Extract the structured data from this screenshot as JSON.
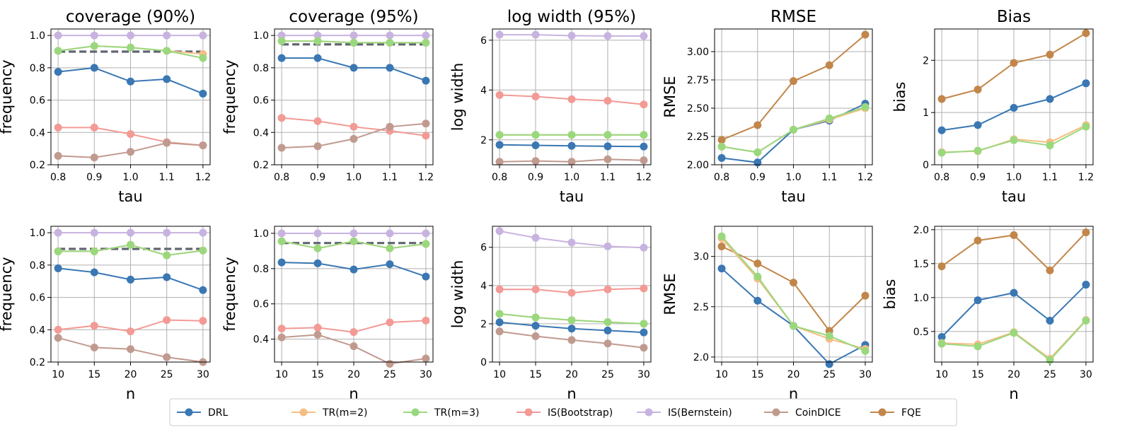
{
  "colors": {
    "DRL": "#3a77b3",
    "TR(m=2)": "#f6be84",
    "TR(m=3)": "#9ad87e",
    "IS(Bootstrap)": "#f39a95",
    "IS(Bernstein)": "#c8b3e0",
    "CoinDICE": "#c19a8f",
    "FQE": "#c2864a",
    "target": "#5f6670",
    "grid": "#b0b0b0"
  },
  "legend": [
    "DRL",
    "TR(m=2)",
    "TR(m=3)",
    "IS(Bootstrap)",
    "IS(Bernstein)",
    "CoinDICE",
    "FQE"
  ],
  "chart_data": [
    {
      "type": "line",
      "title": "coverage  (90%)",
      "xlabel": "tau",
      "ylabel": "frequency",
      "categories": [
        "0.8",
        "0.9",
        "1.0",
        "1.1",
        "1.2"
      ],
      "ylim": [
        0.2,
        1.04
      ],
      "yticks": [
        "0.2",
        "0.4",
        "0.6",
        "0.8",
        "1.0"
      ],
      "target_line": 0.9,
      "series": [
        {
          "name": "IS(Bernstein)",
          "values": [
            1.0,
            1.0,
            1.0,
            1.0,
            1.0
          ]
        },
        {
          "name": "TR(m=2)",
          "values": [
            0.905,
            0.935,
            0.925,
            0.905,
            0.885
          ]
        },
        {
          "name": "TR(m=3)",
          "values": [
            0.905,
            0.935,
            0.925,
            0.905,
            0.86
          ]
        },
        {
          "name": "DRL",
          "values": [
            0.775,
            0.8,
            0.715,
            0.73,
            0.64
          ]
        },
        {
          "name": "IS(Bootstrap)",
          "values": [
            0.43,
            0.43,
            0.39,
            0.34,
            0.32
          ]
        },
        {
          "name": "CoinDICE",
          "values": [
            0.255,
            0.245,
            0.28,
            0.335,
            0.32
          ]
        }
      ]
    },
    {
      "type": "line",
      "title": "coverage (95%)",
      "xlabel": "",
      "ylabel": "frequency",
      "categories": [
        "0.8",
        "0.9",
        "1.0",
        "1.1",
        "1.2"
      ],
      "ylim": [
        0.2,
        1.04
      ],
      "yticks": [
        "0.2",
        "0.4",
        "0.6",
        "0.8",
        "1.0"
      ],
      "target_line": 0.945,
      "series": [
        {
          "name": "IS(Bernstein)",
          "values": [
            1.0,
            1.0,
            1.0,
            1.0,
            1.0
          ]
        },
        {
          "name": "TR(m=2)",
          "values": [
            0.965,
            0.965,
            0.955,
            0.955,
            0.955
          ]
        },
        {
          "name": "TR(m=3)",
          "values": [
            0.965,
            0.965,
            0.955,
            0.955,
            0.955
          ]
        },
        {
          "name": "DRL",
          "values": [
            0.86,
            0.86,
            0.8,
            0.8,
            0.72
          ]
        },
        {
          "name": "IS(Bootstrap)",
          "values": [
            0.49,
            0.47,
            0.435,
            0.41,
            0.38
          ]
        },
        {
          "name": "CoinDICE",
          "values": [
            0.305,
            0.315,
            0.36,
            0.435,
            0.455
          ]
        }
      ]
    },
    {
      "type": "line",
      "title": "log width (95%)",
      "xlabel": "tau",
      "ylabel": "log width",
      "categories": [
        "0.8",
        "0.9",
        "1.0",
        "1.1",
        "1.2"
      ],
      "ylim": [
        1.0,
        6.45
      ],
      "yticks": [
        "2",
        "4",
        "6"
      ],
      "series": [
        {
          "name": "IS(Bernstein)",
          "values": [
            6.22,
            6.22,
            6.18,
            6.17,
            6.17
          ]
        },
        {
          "name": "IS(Bootstrap)",
          "values": [
            3.8,
            3.74,
            3.63,
            3.57,
            3.42
          ]
        },
        {
          "name": "TR(m=2)",
          "values": [
            2.2,
            2.2,
            2.2,
            2.2,
            2.2
          ]
        },
        {
          "name": "TR(m=3)",
          "values": [
            2.2,
            2.2,
            2.2,
            2.2,
            2.2
          ]
        },
        {
          "name": "DRL",
          "values": [
            1.8,
            1.78,
            1.76,
            1.74,
            1.73
          ]
        },
        {
          "name": "CoinDICE",
          "values": [
            1.12,
            1.15,
            1.12,
            1.22,
            1.18
          ]
        }
      ]
    },
    {
      "type": "line",
      "title": "RMSE",
      "xlabel": "tau",
      "ylabel": "RMSE",
      "categories": [
        "0.8",
        "0.9",
        "1.0",
        "1.1",
        "1.2"
      ],
      "ylim": [
        2.0,
        3.2
      ],
      "yticks": [
        "2.00",
        "2.25",
        "2.50",
        "2.75",
        "3.00"
      ],
      "series": [
        {
          "name": "FQE",
          "values": [
            2.22,
            2.35,
            2.74,
            2.88,
            3.15
          ]
        },
        {
          "name": "DRL",
          "values": [
            2.06,
            2.02,
            2.31,
            2.39,
            2.54
          ]
        },
        {
          "name": "TR(m=2)",
          "values": [
            2.16,
            2.11,
            2.31,
            2.4,
            2.5
          ]
        },
        {
          "name": "TR(m=3)",
          "values": [
            2.16,
            2.11,
            2.31,
            2.41,
            2.51
          ]
        }
      ]
    },
    {
      "type": "line",
      "title": "Bias",
      "xlabel": "tau",
      "ylabel": "bias",
      "categories": [
        "0.8",
        "0.9",
        "1.0",
        "1.1",
        "1.2"
      ],
      "ylim": [
        0.0,
        2.6
      ],
      "yticks": [
        "0",
        "1",
        "2"
      ],
      "series": [
        {
          "name": "FQE",
          "values": [
            1.26,
            1.44,
            1.95,
            2.11,
            2.52
          ]
        },
        {
          "name": "DRL",
          "values": [
            0.66,
            0.76,
            1.09,
            1.26,
            1.56
          ]
        },
        {
          "name": "TR(m=2)",
          "values": [
            0.24,
            0.26,
            0.49,
            0.43,
            0.76
          ]
        },
        {
          "name": "TR(m=3)",
          "values": [
            0.23,
            0.27,
            0.47,
            0.37,
            0.73
          ]
        }
      ]
    },
    {
      "type": "line",
      "title": "",
      "xlabel": "n",
      "ylabel": "frequency",
      "categories": [
        "10",
        "15",
        "20",
        "25",
        "30"
      ],
      "ylim": [
        0.2,
        1.04
      ],
      "yticks": [
        "0.2",
        "0.4",
        "0.6",
        "0.8",
        "1.0"
      ],
      "target_line": 0.9,
      "series": [
        {
          "name": "IS(Bernstein)",
          "values": [
            1.0,
            1.0,
            1.0,
            1.0,
            1.0
          ]
        },
        {
          "name": "TR(m=2)",
          "values": [
            0.885,
            0.885,
            0.925,
            0.86,
            0.89
          ]
        },
        {
          "name": "TR(m=3)",
          "values": [
            0.885,
            0.885,
            0.925,
            0.86,
            0.89
          ]
        },
        {
          "name": "DRL",
          "values": [
            0.78,
            0.755,
            0.71,
            0.725,
            0.645
          ]
        },
        {
          "name": "IS(Bootstrap)",
          "values": [
            0.4,
            0.425,
            0.39,
            0.46,
            0.455
          ]
        },
        {
          "name": "CoinDICE",
          "values": [
            0.35,
            0.29,
            0.28,
            0.23,
            0.2
          ]
        }
      ]
    },
    {
      "type": "line",
      "title": "",
      "xlabel": "n",
      "ylabel": "frequency",
      "categories": [
        "10",
        "15",
        "20",
        "25",
        "30"
      ],
      "ylim": [
        0.27,
        1.04
      ],
      "yticks": [
        "0.4",
        "0.6",
        "0.8",
        "1.0"
      ],
      "target_line": 0.945,
      "series": [
        {
          "name": "IS(Bernstein)",
          "values": [
            1.0,
            1.0,
            1.0,
            1.0,
            1.0
          ]
        },
        {
          "name": "TR(m=2)",
          "values": [
            0.955,
            0.915,
            0.955,
            0.915,
            0.94
          ]
        },
        {
          "name": "TR(m=3)",
          "values": [
            0.955,
            0.915,
            0.955,
            0.915,
            0.94
          ]
        },
        {
          "name": "DRL",
          "values": [
            0.835,
            0.83,
            0.795,
            0.825,
            0.755
          ]
        },
        {
          "name": "IS(Bootstrap)",
          "values": [
            0.46,
            0.465,
            0.44,
            0.495,
            0.505
          ]
        },
        {
          "name": "CoinDICE",
          "values": [
            0.41,
            0.425,
            0.36,
            0.26,
            0.29
          ]
        }
      ]
    },
    {
      "type": "line",
      "title": "",
      "xlabel": "n",
      "ylabel": "log width",
      "categories": [
        "10",
        "15",
        "20",
        "25",
        "30"
      ],
      "ylim": [
        0.0,
        7.1
      ],
      "yticks": [
        "0",
        "2",
        "4",
        "6"
      ],
      "series": [
        {
          "name": "IS(Bernstein)",
          "values": [
            6.85,
            6.5,
            6.25,
            6.05,
            5.98
          ]
        },
        {
          "name": "IS(Bootstrap)",
          "values": [
            3.8,
            3.8,
            3.62,
            3.8,
            3.85
          ]
        },
        {
          "name": "TR(m=2)",
          "values": [
            2.52,
            2.33,
            2.19,
            2.09,
            2.0
          ]
        },
        {
          "name": "TR(m=3)",
          "values": [
            2.52,
            2.33,
            2.19,
            2.09,
            2.0
          ]
        },
        {
          "name": "DRL",
          "values": [
            2.08,
            1.9,
            1.75,
            1.65,
            1.55
          ]
        },
        {
          "name": "CoinDICE",
          "values": [
            1.6,
            1.35,
            1.15,
            0.97,
            0.75
          ]
        }
      ]
    },
    {
      "type": "line",
      "title": "",
      "xlabel": "n",
      "ylabel": "RMSE",
      "categories": [
        "10",
        "15",
        "20",
        "25",
        "30"
      ],
      "ylim": [
        1.95,
        3.3
      ],
      "yticks": [
        "2.0",
        "2.5",
        "3.0"
      ],
      "series": [
        {
          "name": "FQE",
          "values": [
            3.1,
            2.93,
            2.74,
            2.26,
            2.61
          ]
        },
        {
          "name": "DRL",
          "values": [
            2.88,
            2.56,
            2.31,
            1.93,
            2.12
          ]
        },
        {
          "name": "TR(m=2)",
          "values": [
            3.18,
            2.78,
            2.31,
            2.18,
            2.08
          ]
        },
        {
          "name": "TR(m=3)",
          "values": [
            3.2,
            2.8,
            2.31,
            2.21,
            2.06
          ]
        }
      ]
    },
    {
      "type": "line",
      "title": "",
      "xlabel": "n",
      "ylabel": "bias",
      "categories": [
        "10",
        "15",
        "20",
        "25",
        "30"
      ],
      "ylim": [
        0.05,
        2.05
      ],
      "yticks": [
        "0.5",
        "1.0",
        "1.5",
        "2.0"
      ],
      "series": [
        {
          "name": "FQE",
          "values": [
            1.46,
            1.84,
            1.92,
            1.4,
            1.96
          ]
        },
        {
          "name": "DRL",
          "values": [
            0.42,
            0.96,
            1.07,
            0.66,
            1.19
          ]
        },
        {
          "name": "TR(m=2)",
          "values": [
            0.33,
            0.31,
            0.49,
            0.1,
            0.67
          ]
        },
        {
          "name": "TR(m=3)",
          "values": [
            0.32,
            0.28,
            0.48,
            0.08,
            0.66
          ]
        }
      ]
    }
  ]
}
